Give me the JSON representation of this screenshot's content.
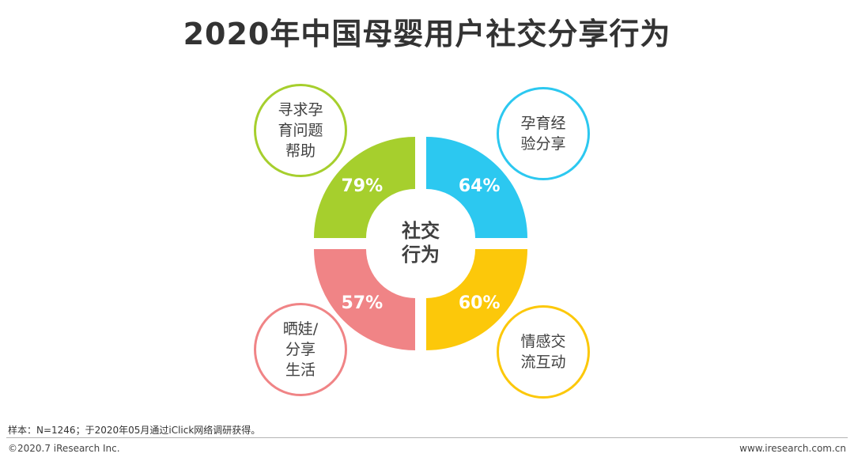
{
  "title": "2020年中国母婴用户社交分享行为",
  "chart_data": {
    "type": "pie",
    "center_label": [
      "社交",
      "行为"
    ],
    "segments": [
      {
        "name": "寻求孕育问题帮助",
        "label_lines": [
          "寻求孕",
          "育问题",
          "帮助"
        ],
        "value": 79,
        "value_label": "79%",
        "color": "#a6cf2d"
      },
      {
        "name": "孕育经验分享",
        "label_lines": [
          "孕育经",
          "验分享"
        ],
        "value": 64,
        "value_label": "64%",
        "color": "#2cc8f0"
      },
      {
        "name": "晒娃/分享生活",
        "label_lines": [
          "晒娃/",
          "分享",
          "生活"
        ],
        "value": 57,
        "value_label": "57%",
        "color": "#f08486"
      },
      {
        "name": "情感交流互动",
        "label_lines": [
          "情感交",
          "流互动"
        ],
        "value": 60,
        "value_label": "60%",
        "color": "#fcc80a"
      }
    ]
  },
  "footer": {
    "source": "样本：N=1246；于2020年05月通过iClick网络调研获得。",
    "copyright": "©2020.7 iResearch Inc.",
    "website": "www.iresearch.com.cn"
  }
}
